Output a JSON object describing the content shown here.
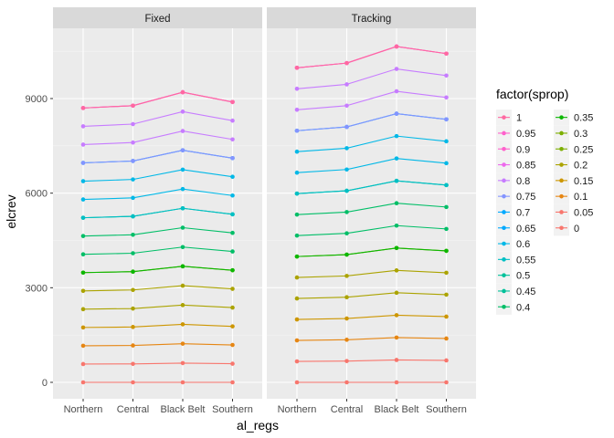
{
  "chart_data": {
    "type": "line",
    "xlabel": "al_regs",
    "ylabel": "elcrev",
    "categories": [
      "Northern",
      "Central",
      "Black Belt",
      "Southern"
    ],
    "ylim": [
      -350,
      11300
    ],
    "yticks": [
      0,
      3000,
      6000,
      9000
    ],
    "ytick_labels": [
      "0",
      "3000",
      "6000",
      "9000"
    ],
    "grid": true,
    "legend_position": "right",
    "legend_title": "factor(sprop)",
    "colors": [
      "#F8766D",
      "#E68613",
      "#CD9600",
      "#ABA300",
      "#7CAE00",
      "#0CB702",
      "#00BE67",
      "#00C19A",
      "#00BFC4",
      "#00B8E7",
      "#00A9FF",
      "#8494FF",
      "#C77CFF",
      "#ED68ED",
      "#FF61CC",
      "#FF68A1"
    ],
    "series_names": [
      "0",
      "0.05",
      "0.1",
      "0.15",
      "0.2",
      "0.25",
      "0.3",
      "0.35",
      "0.4",
      "0.45",
      "0.5",
      "0.55",
      "0.6",
      "0.65",
      "0.7",
      "0.75",
      "0.8",
      "0.85",
      "0.9",
      "0.95",
      "1"
    ],
    "panels": [
      {
        "strip": "Fixed",
        "values": [
          [
            0,
            0,
            0,
            0
          ],
          [
            580,
            585,
            610,
            590
          ],
          [
            1160,
            1170,
            1225,
            1185
          ],
          [
            1740,
            1755,
            1840,
            1775
          ],
          [
            2320,
            2340,
            2450,
            2370
          ],
          [
            2900,
            2930,
            3065,
            2965
          ],
          [
            3480,
            3510,
            3680,
            3555
          ],
          [
            3480,
            3510,
            3680,
            3555
          ],
          [
            4060,
            4095,
            4290,
            4150
          ],
          [
            4640,
            4680,
            4905,
            4740
          ],
          [
            5220,
            5265,
            5520,
            5330
          ],
          [
            5220,
            5265,
            5520,
            5330
          ],
          [
            5800,
            5850,
            6130,
            5925
          ],
          [
            6380,
            6435,
            6745,
            6520
          ],
          [
            6960,
            7020,
            7360,
            7110
          ],
          [
            6960,
            7020,
            7360,
            7110
          ],
          [
            7540,
            7605,
            7970,
            7705
          ],
          [
            8120,
            8190,
            8585,
            8300
          ],
          [
            8700,
            8775,
            9200,
            8890
          ],
          [
            8700,
            8775,
            9200,
            8890
          ],
          [
            8700,
            8775,
            9200,
            8890
          ]
        ]
      },
      {
        "strip": "Tracking",
        "values": [
          [
            0,
            0,
            0,
            0
          ],
          [
            665,
            675,
            710,
            695
          ],
          [
            1330,
            1350,
            1420,
            1390
          ],
          [
            1995,
            2025,
            2130,
            2085
          ],
          [
            2660,
            2700,
            2840,
            2780
          ],
          [
            3325,
            3375,
            3550,
            3475
          ],
          [
            3990,
            4050,
            4260,
            4170
          ],
          [
            3990,
            4050,
            4260,
            4170
          ],
          [
            4655,
            4725,
            4970,
            4865
          ],
          [
            5320,
            5400,
            5680,
            5560
          ],
          [
            5985,
            6075,
            6390,
            6255
          ],
          [
            5985,
            6075,
            6390,
            6255
          ],
          [
            6650,
            6750,
            7100,
            6950
          ],
          [
            7315,
            7425,
            7810,
            7645
          ],
          [
            7980,
            8100,
            8520,
            8340
          ],
          [
            7980,
            8100,
            8520,
            8340
          ],
          [
            8645,
            8775,
            9230,
            9035
          ],
          [
            9310,
            9450,
            9940,
            9730
          ],
          [
            9975,
            10125,
            10650,
            10425
          ],
          [
            9975,
            10125,
            10650,
            10425
          ],
          [
            9975,
            10125,
            10650,
            10425
          ]
        ]
      }
    ],
    "legend_items": [
      {
        "label": "1",
        "color": "#FF68A1"
      },
      {
        "label": "0.95",
        "color": "#FF61CC"
      },
      {
        "label": "0.9",
        "color": "#FF61CC"
      },
      {
        "label": "0.85",
        "color": "#ED68ED"
      },
      {
        "label": "0.8",
        "color": "#C77CFF"
      },
      {
        "label": "0.75",
        "color": "#8494FF"
      },
      {
        "label": "0.7",
        "color": "#00A9FF"
      },
      {
        "label": "0.65",
        "color": "#00A9FF"
      },
      {
        "label": "0.6",
        "color": "#00B8E7"
      },
      {
        "label": "0.55",
        "color": "#00BFC4"
      },
      {
        "label": "0.5",
        "color": "#00C19A"
      },
      {
        "label": "0.45",
        "color": "#00C19A"
      },
      {
        "label": "0.4",
        "color": "#00BE67"
      },
      {
        "label": "0.35",
        "color": "#0CB702"
      },
      {
        "label": "0.3",
        "color": "#7CAE00"
      },
      {
        "label": "0.25",
        "color": "#7CAE00"
      },
      {
        "label": "0.2",
        "color": "#ABA300"
      },
      {
        "label": "0.15",
        "color": "#CD9600"
      },
      {
        "label": "0.1",
        "color": "#E68613"
      },
      {
        "label": "0.05",
        "color": "#F8766D"
      },
      {
        "label": "0",
        "color": "#F8766D"
      }
    ]
  }
}
